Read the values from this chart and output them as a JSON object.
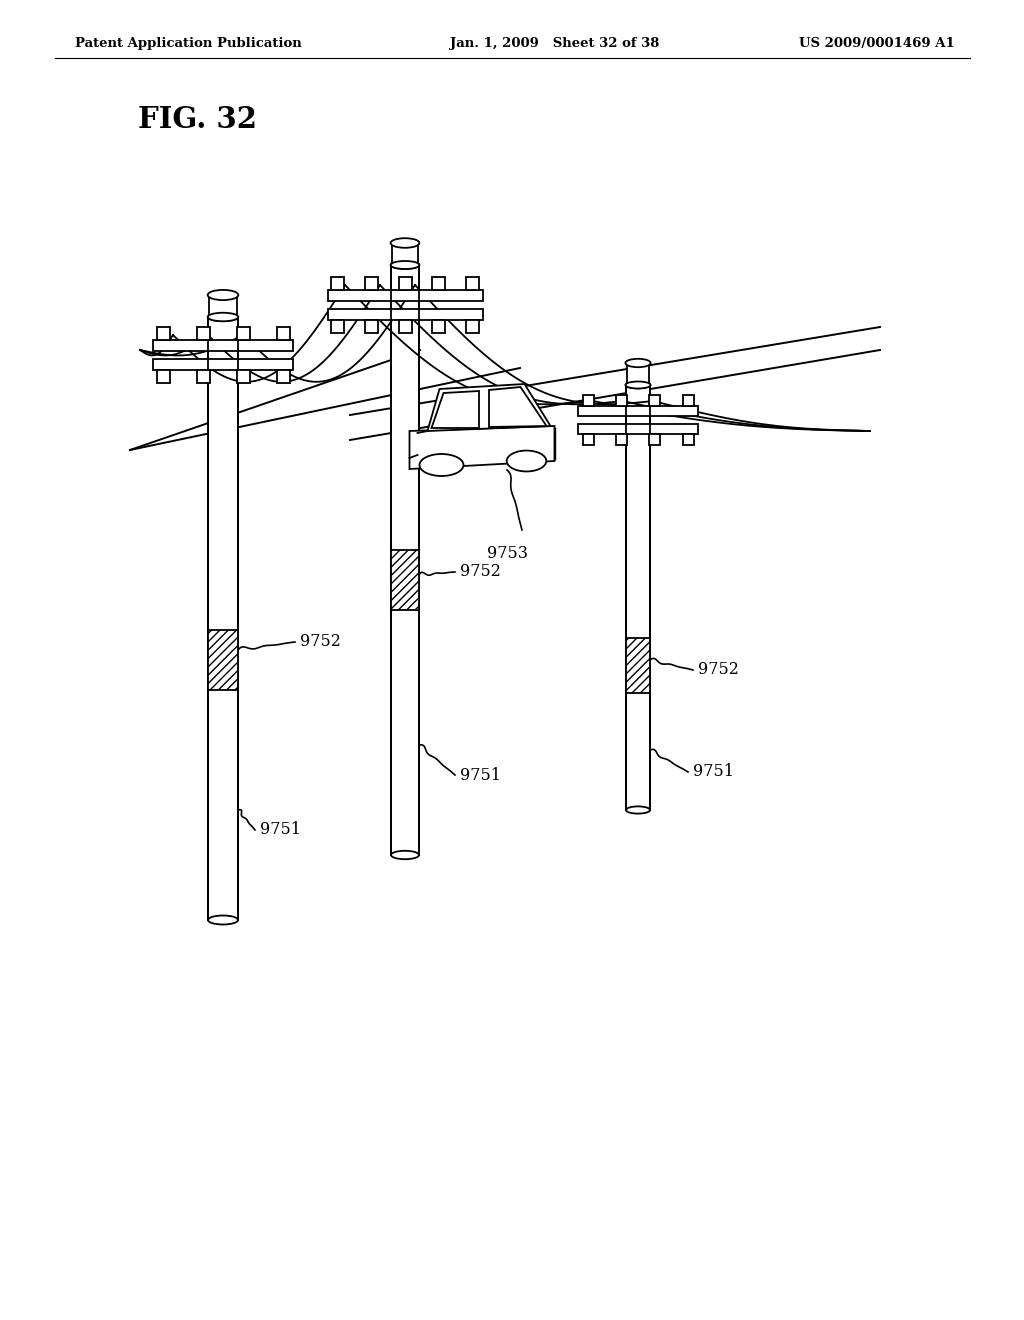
{
  "background_color": "#ffffff",
  "header_left": "Patent Application Publication",
  "header_center": "Jan. 1, 2009   Sheet 32 of 38",
  "header_right": "US 2009/0001469 A1",
  "figure_label": "FIG. 32",
  "line_color": "#000000",
  "lw": 1.3
}
